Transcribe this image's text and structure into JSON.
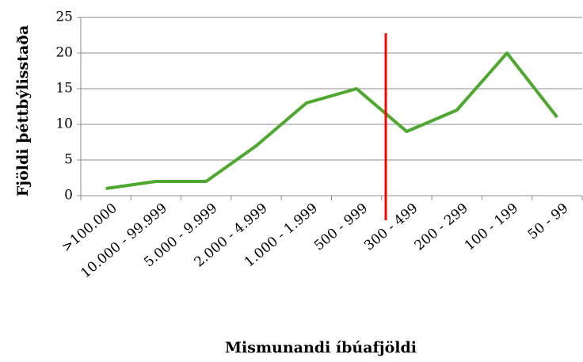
{
  "chart_data": {
    "type": "line",
    "categories": [
      ">100.000",
      "10.000 - 99.999",
      "5.000 - 9.999",
      "2.000 - 4.999",
      "1.000 - 1.999",
      "500 - 999",
      "300 - 499",
      "200 - 299",
      "100 - 199",
      "50 - 99"
    ],
    "series": [
      {
        "name": "Fjöldi þéttbýlisstaða",
        "color": "#4ea72e",
        "values": [
          1,
          2,
          2,
          7,
          13,
          15,
          9,
          12,
          20,
          11
        ]
      }
    ],
    "x_label": "Mismunandi íbúafjöldi",
    "y_label": "Fjöldi þéttbýlisstaða",
    "ylim": [
      0,
      25
    ],
    "yticks": [
      0,
      5,
      10,
      15,
      20,
      25
    ],
    "grid": true
  }
}
